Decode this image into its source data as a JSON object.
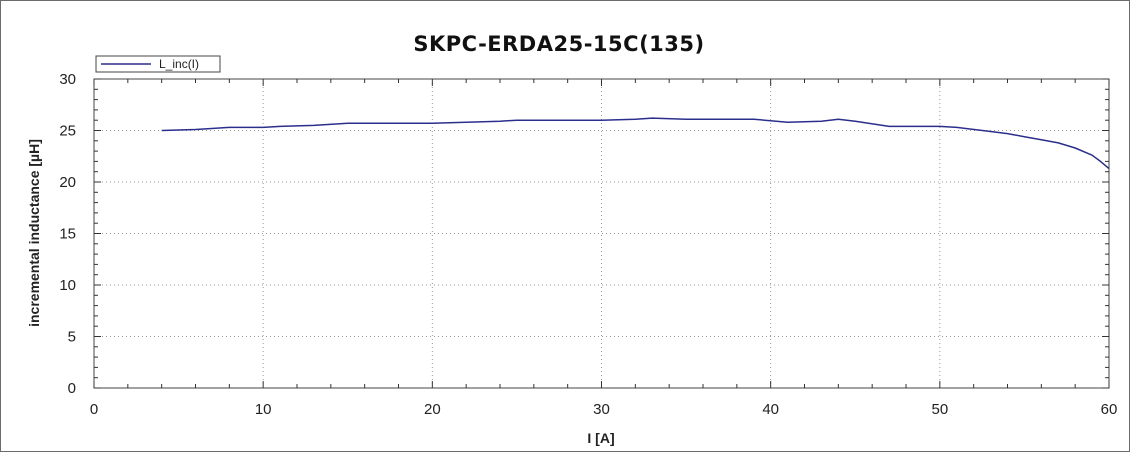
{
  "chart_data": {
    "type": "line",
    "title": "SKPC-ERDA25-15C(135)",
    "xlabel": "I [A]",
    "ylabel": "incremental inductance [µH]",
    "xlim": [
      0,
      60
    ],
    "ylim": [
      0,
      30
    ],
    "x_ticks": [
      "0",
      "10",
      "20",
      "30",
      "40",
      "50",
      "60"
    ],
    "y_ticks": [
      "0",
      "5",
      "10",
      "15",
      "20",
      "25",
      "30"
    ],
    "grid": true,
    "legend": "top-left",
    "series": [
      {
        "name": "L_inc(I)",
        "color": "#2b2f8c",
        "x": [
          4,
          6,
          8,
          10,
          11,
          13,
          15,
          17,
          20,
          22,
          24,
          25,
          27,
          30,
          32,
          33,
          35,
          37,
          39,
          41,
          43,
          44,
          45,
          47,
          50,
          51,
          53,
          54,
          55,
          56,
          57,
          58,
          59,
          59.5,
          60
        ],
        "y": [
          25.0,
          25.1,
          25.3,
          25.3,
          25.4,
          25.5,
          25.7,
          25.7,
          25.7,
          25.8,
          25.9,
          26.0,
          26.0,
          26.0,
          26.1,
          26.2,
          26.1,
          26.1,
          26.1,
          25.8,
          25.9,
          26.1,
          25.9,
          25.4,
          25.4,
          25.3,
          24.9,
          24.7,
          24.4,
          24.1,
          23.8,
          23.3,
          22.6,
          22.0,
          21.3
        ]
      }
    ]
  }
}
